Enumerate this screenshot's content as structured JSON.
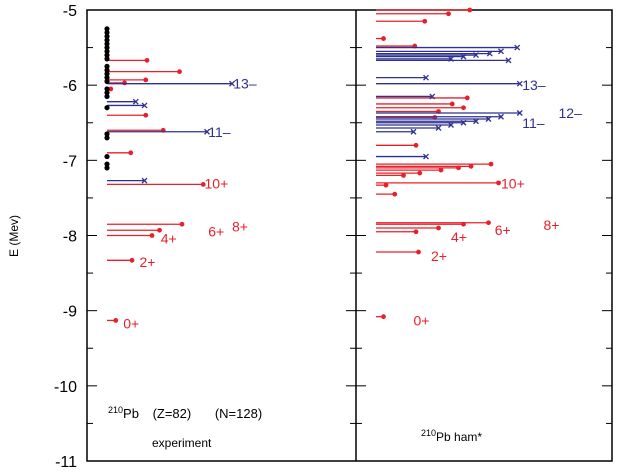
{
  "chart_data": {
    "type": "scatter",
    "ylabel": "E (Mev)",
    "ylim": [
      -11,
      -5
    ],
    "yticks": [
      "-5",
      "-6",
      "-7",
      "-8",
      "-9",
      "-10",
      "-11"
    ],
    "colors": {
      "even": "#e8202a",
      "odd": "#2e3192",
      "unassigned": "#000000",
      "frame": "#000000"
    },
    "panels": [
      {
        "name": "experiment",
        "caption": "experiment",
        "note": {
          "prefix": "210",
          "element": "Pb",
          "z": "(Z=82)",
          "n": "(N=128)"
        },
        "black_points": [
          -5.25,
          -5.3,
          -5.35,
          -5.4,
          -5.45,
          -5.5,
          -5.55,
          -5.6,
          -5.65,
          -5.75,
          -5.8,
          -5.85,
          -5.9,
          -5.95,
          -6.05,
          -6.1,
          -6.15,
          -6.3,
          -6.65,
          -6.7,
          -6.95,
          -7.05,
          -7.1
        ],
        "red_levels": [
          {
            "e": -5.67,
            "len": 0.32
          },
          {
            "e": -5.82,
            "len": 0.58
          },
          {
            "e": -5.93,
            "len": 0.31
          },
          {
            "e": -5.97,
            "len": 0.14
          },
          {
            "e": -6.05,
            "len": 0.03
          },
          {
            "e": -6.4,
            "len": 0.31
          },
          {
            "e": -6.6,
            "len": 0.45
          },
          {
            "e": -6.9,
            "len": 0.19
          },
          {
            "e": -7.32,
            "len": 0.77
          },
          {
            "e": -7.85,
            "len": 0.6
          },
          {
            "e": -7.93,
            "len": 0.42
          },
          {
            "e": -8.0,
            "len": 0.36
          },
          {
            "e": -8.33,
            "len": 0.2
          },
          {
            "e": -9.13,
            "len": 0.07
          }
        ],
        "blue_levels": [
          {
            "e": -5.98,
            "len": 1.0
          },
          {
            "e": -6.22,
            "len": 0.23
          },
          {
            "e": -6.27,
            "len": 0.3
          },
          {
            "e": -6.62,
            "len": 0.8
          },
          {
            "e": -7.27,
            "len": 0.3
          }
        ],
        "labels": [
          {
            "text": "13–",
            "e": -5.98,
            "x": 1.01,
            "color": "odd"
          },
          {
            "text": "11–",
            "e": -6.62,
            "x": 0.81,
            "color": "odd"
          },
          {
            "text": "10+",
            "e": -7.31,
            "x": 0.78,
            "color": "even"
          },
          {
            "text": "8+",
            "e": -7.88,
            "x": 1.0,
            "color": "even"
          },
          {
            "text": "6+",
            "e": -7.95,
            "x": 0.81,
            "color": "even"
          },
          {
            "text": "4+",
            "e": -8.04,
            "x": 0.43,
            "color": "even"
          },
          {
            "text": "2+",
            "e": -8.35,
            "x": 0.26,
            "color": "even"
          },
          {
            "text": "0+",
            "e": -9.17,
            "x": 0.13,
            "color": "even"
          }
        ]
      },
      {
        "name": "210Pb ham*",
        "caption_prefix": "210",
        "caption": "Pb ham*",
        "red_levels": [
          {
            "e": -5.0,
            "len": 0.75
          },
          {
            "e": -5.05,
            "len": 0.58
          },
          {
            "e": -5.15,
            "len": 0.39
          },
          {
            "e": -5.38,
            "len": 0.06
          },
          {
            "e": -5.48,
            "len": 0.31
          },
          {
            "e": -6.17,
            "len": 0.73
          },
          {
            "e": -6.25,
            "len": 0.61
          },
          {
            "e": -6.3,
            "len": 0.7
          },
          {
            "e": -6.35,
            "len": 0.5
          },
          {
            "e": -6.43,
            "len": 0.47
          },
          {
            "e": -6.8,
            "len": 0.32
          },
          {
            "e": -7.05,
            "len": 0.92
          },
          {
            "e": -7.08,
            "len": 0.76
          },
          {
            "e": -7.1,
            "len": 0.66
          },
          {
            "e": -7.13,
            "len": 0.52
          },
          {
            "e": -7.17,
            "len": 0.35
          },
          {
            "e": -7.2,
            "len": 0.22
          },
          {
            "e": -7.3,
            "len": 0.98
          },
          {
            "e": -7.33,
            "len": 0.08
          },
          {
            "e": -7.45,
            "len": 0.15
          },
          {
            "e": -7.83,
            "len": 0.9
          },
          {
            "e": -7.85,
            "len": 0.7
          },
          {
            "e": -7.9,
            "len": 0.5
          },
          {
            "e": -7.95,
            "len": 0.32
          },
          {
            "e": -8.22,
            "len": 0.34
          },
          {
            "e": -9.08,
            "len": 0.06
          }
        ],
        "blue_levels": [
          {
            "e": -5.5,
            "len": 1.13
          },
          {
            "e": -5.55,
            "len": 1.0
          },
          {
            "e": -5.58,
            "len": 0.91
          },
          {
            "e": -5.6,
            "len": 0.8
          },
          {
            "e": -5.62,
            "len": 0.7
          },
          {
            "e": -5.65,
            "len": 0.6
          },
          {
            "e": -5.67,
            "len": 1.06
          },
          {
            "e": -5.9,
            "len": 0.4
          },
          {
            "e": -5.98,
            "len": 1.15
          },
          {
            "e": -6.15,
            "len": 0.45
          },
          {
            "e": -6.37,
            "len": 1.15
          },
          {
            "e": -6.42,
            "len": 1.0
          },
          {
            "e": -6.45,
            "len": 0.9
          },
          {
            "e": -6.48,
            "len": 0.8
          },
          {
            "e": -6.5,
            "len": 0.7
          },
          {
            "e": -6.53,
            "len": 0.6
          },
          {
            "e": -6.57,
            "len": 0.5
          },
          {
            "e": -6.62,
            "len": 0.3
          },
          {
            "e": -6.95,
            "len": 0.4
          }
        ],
        "labels": [
          {
            "text": "13–",
            "e": -6.0,
            "x": 1.17,
            "color": "odd"
          },
          {
            "text": "12–",
            "e": -6.37,
            "x": 1.46,
            "color": "odd"
          },
          {
            "text": "11–",
            "e": -6.5,
            "x": 1.17,
            "color": "odd"
          },
          {
            "text": "10+",
            "e": -7.31,
            "x": 1.0,
            "color": "even"
          },
          {
            "text": "8+",
            "e": -7.86,
            "x": 1.34,
            "color": "even"
          },
          {
            "text": "6+",
            "e": -7.93,
            "x": 0.95,
            "color": "even"
          },
          {
            "text": "4+",
            "e": -8.02,
            "x": 0.6,
            "color": "even"
          },
          {
            "text": "2+",
            "e": -8.27,
            "x": 0.44,
            "color": "even"
          },
          {
            "text": "0+",
            "e": -9.13,
            "x": 0.3,
            "color": "even"
          }
        ]
      }
    ]
  }
}
